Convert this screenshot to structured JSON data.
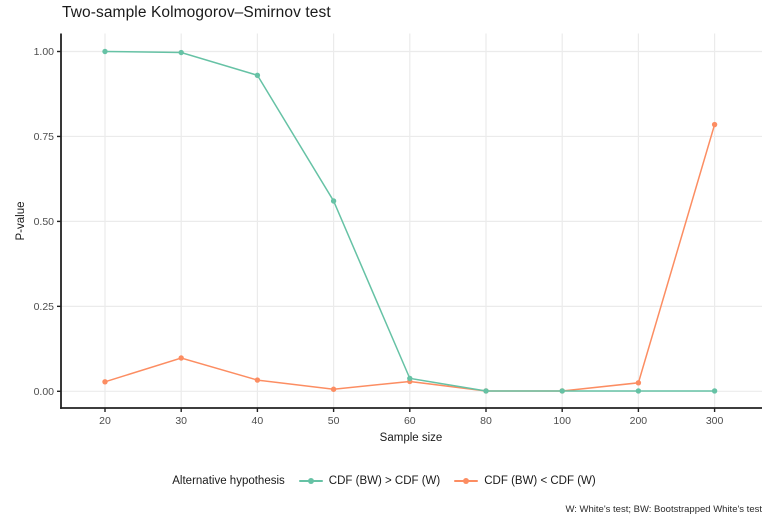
{
  "chart": {
    "title": "Two-sample Kolmogorov–Smirnov test",
    "xlabel": "Sample size",
    "ylabel": "P-value",
    "caption": "W: White's test; BW: Bootstrapped White's test"
  },
  "legend": {
    "title": "Alternative hypothesis"
  },
  "style": {
    "background": "#FFFFFF",
    "grid_color": "#EBEBEB",
    "axis_color": "#222222",
    "tick_label_color": "#4D4D4D",
    "text_color": "#1A1A1A"
  },
  "chart_data": {
    "type": "line",
    "title": "Two-sample Kolmogorov–Smirnov test",
    "xlabel": "Sample size",
    "ylabel": "P-value",
    "caption": "W: White's test; BW: Bootstrapped White's test",
    "x_is_discrete": true,
    "categories": [
      "20",
      "30",
      "40",
      "50",
      "60",
      "80",
      "100",
      "200",
      "300"
    ],
    "series": [
      {
        "name": "CDF (BW) > CDF (W)",
        "color": "#66C2A5",
        "values": [
          1.0,
          0.997,
          0.93,
          0.56,
          0.038,
          0.001,
          0.001,
          0.001,
          0.001
        ]
      },
      {
        "name": "CDF (BW) < CDF (W)",
        "color": "#FC8D62",
        "values": [
          0.028,
          0.098,
          0.033,
          0.006,
          0.029,
          0.001,
          0.001,
          0.025,
          0.785
        ]
      }
    ],
    "yticks": [
      {
        "label": "0.00",
        "value": 0
      },
      {
        "label": "0.25",
        "value": 0.25
      },
      {
        "label": "0.50",
        "value": 0.5
      },
      {
        "label": "0.75",
        "value": 0.75
      },
      {
        "label": "1.00",
        "value": 1
      }
    ],
    "ylim": [
      0,
      1
    ],
    "grid": "major",
    "axis_lines": "left-and-bottom-black",
    "legend_position": "bottom",
    "legend_title": "Alternative hypothesis"
  }
}
